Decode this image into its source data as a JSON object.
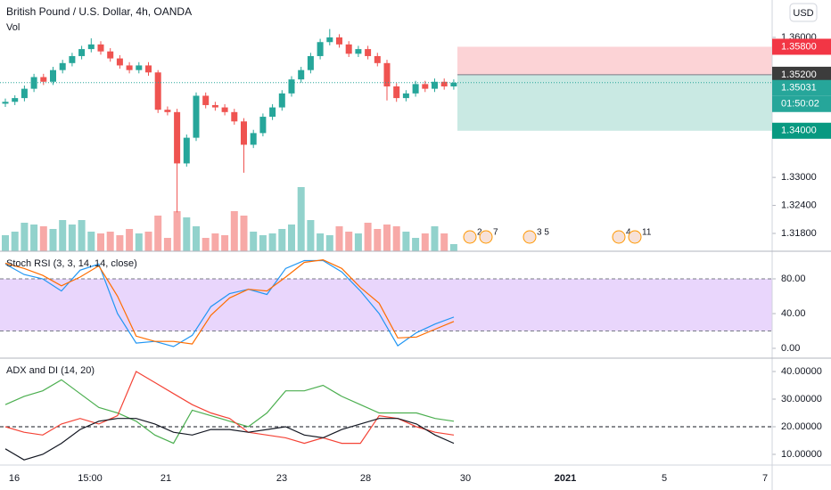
{
  "chart_data": [
    {
      "type": "candlestick",
      "title": "British Pound / U.S. Dollar, 4h, OANDA",
      "volume_label": "Vol",
      "currency": "USD",
      "up_color": "#26a69a",
      "down_color": "#ef5350",
      "open": [
        1.3458,
        1.3462,
        1.347,
        1.349,
        1.3515,
        1.3505,
        1.353,
        1.3545,
        1.356,
        1.3575,
        1.3585,
        1.357,
        1.3555,
        1.354,
        1.353,
        1.354,
        1.3525,
        1.3445,
        1.344,
        1.333,
        1.3385,
        1.3475,
        1.3455,
        1.345,
        1.344,
        1.342,
        1.337,
        1.3395,
        1.343,
        1.345,
        1.348,
        1.351,
        1.353,
        1.356,
        1.359,
        1.36,
        1.3585,
        1.3565,
        1.3575,
        1.356,
        1.3545,
        1.3495,
        1.347,
        1.348,
        1.35,
        1.349,
        1.3505,
        1.3495
      ],
      "high": [
        1.3469,
        1.3476,
        1.3497,
        1.3522,
        1.3522,
        1.3537,
        1.3552,
        1.3567,
        1.3582,
        1.3598,
        1.3592,
        1.3577,
        1.3562,
        1.3547,
        1.3547,
        1.3547,
        1.353,
        1.3452,
        1.3447,
        1.3392,
        1.3482,
        1.3482,
        1.3462,
        1.3457,
        1.3447,
        1.3427,
        1.3402,
        1.3437,
        1.3457,
        1.3487,
        1.3517,
        1.3537,
        1.3567,
        1.3597,
        1.3618,
        1.3607,
        1.3592,
        1.3582,
        1.3582,
        1.3567,
        1.3552,
        1.3502,
        1.3487,
        1.3507,
        1.3507,
        1.3512,
        1.3512,
        1.351
      ],
      "low": [
        1.3451,
        1.3455,
        1.3463,
        1.3483,
        1.3498,
        1.3498,
        1.3523,
        1.3538,
        1.3553,
        1.3568,
        1.3563,
        1.3548,
        1.3533,
        1.3523,
        1.3523,
        1.3518,
        1.3438,
        1.3433,
        1.3225,
        1.3323,
        1.3378,
        1.3448,
        1.3443,
        1.3433,
        1.3413,
        1.331,
        1.3363,
        1.3388,
        1.3423,
        1.3443,
        1.3473,
        1.3503,
        1.3523,
        1.3553,
        1.3583,
        1.3578,
        1.3558,
        1.3558,
        1.3553,
        1.3538,
        1.3465,
        1.3462,
        1.3463,
        1.3473,
        1.3483,
        1.3483,
        1.3488,
        1.3488
      ],
      "close": [
        1.3462,
        1.347,
        1.349,
        1.3515,
        1.3505,
        1.353,
        1.3545,
        1.356,
        1.3575,
        1.3585,
        1.357,
        1.3555,
        1.354,
        1.353,
        1.354,
        1.3525,
        1.3445,
        1.344,
        1.333,
        1.3385,
        1.3475,
        1.3455,
        1.345,
        1.344,
        1.342,
        1.337,
        1.3395,
        1.343,
        1.345,
        1.348,
        1.351,
        1.353,
        1.356,
        1.359,
        1.36,
        1.3585,
        1.3565,
        1.3575,
        1.356,
        1.3545,
        1.3495,
        1.347,
        1.348,
        1.35,
        1.349,
        1.3505,
        1.3495,
        1.3503
      ],
      "volume": [
        18,
        22,
        32,
        30,
        28,
        25,
        35,
        30,
        35,
        22,
        20,
        22,
        18,
        25,
        20,
        22,
        40,
        15,
        45,
        38,
        28,
        15,
        20,
        18,
        45,
        40,
        22,
        18,
        20,
        25,
        30,
        72,
        35,
        20,
        18,
        28,
        22,
        20,
        32,
        25,
        30,
        28,
        22,
        15,
        20,
        28,
        20,
        8
      ],
      "ylim": [
        1.31418,
        1.36802
      ],
      "yticks": [
        {
          "value": 1.36,
          "label": "1.36000"
        },
        {
          "value": 1.33,
          "label": "1.33000"
        },
        {
          "value": 1.324,
          "label": "1.32400"
        },
        {
          "value": 1.318,
          "label": "1.31800"
        }
      ],
      "position": {
        "stop": {
          "value": 1.358,
          "label": "1.35800"
        },
        "entry": {
          "value": 1.352,
          "label": "1.35200"
        },
        "target": {
          "value": 1.34,
          "label": "1.34000"
        }
      },
      "last_price": {
        "value": 1.35031,
        "label": "1.35031"
      },
      "countdown": "01:50:02",
      "x_labels": [
        "16",
        "15:00",
        "21",
        "23",
        "28",
        "30",
        "2021",
        "5",
        "7"
      ],
      "events": [
        "2",
        "7",
        "3 5",
        "4",
        "11"
      ]
    },
    {
      "type": "line",
      "title": "Stoch RSI (3, 3, 14, 14, close)",
      "series": [
        {
          "name": "K",
          "color": "#2196f3",
          "values": [
            97,
            85,
            80,
            66,
            90,
            97,
            40,
            6,
            8,
            2,
            15,
            48,
            63,
            68,
            62,
            92,
            101,
            101,
            88,
            66,
            40,
            3,
            18,
            28,
            36
          ]
        },
        {
          "name": "D",
          "color": "#ff6d00",
          "values": [
            98,
            92,
            84,
            72,
            82,
            95,
            60,
            14,
            8,
            8,
            5,
            38,
            58,
            68,
            66,
            82,
            99,
            102,
            92,
            70,
            52,
            12,
            13,
            22,
            31
          ]
        }
      ],
      "band": [
        20,
        80
      ],
      "band_color": "#e1c8fb",
      "ylim": [
        -11.3,
        111.8
      ],
      "yticks": [
        {
          "value": 80,
          "label": "80.00"
        },
        {
          "value": 40,
          "label": "40.00"
        },
        {
          "value": 0,
          "label": "0.00"
        }
      ]
    },
    {
      "type": "line",
      "title": "ADX and DI (14, 20)",
      "series": [
        {
          "name": "+DI",
          "color": "#4caf50",
          "values": [
            28,
            31,
            33,
            37,
            32,
            27,
            25,
            22,
            17,
            14,
            26,
            24,
            22,
            20,
            25,
            33,
            33,
            35,
            31,
            28,
            25,
            25,
            25,
            23,
            22
          ]
        },
        {
          "name": "-DI",
          "color": "#f44336",
          "values": [
            20,
            18,
            17,
            21,
            23,
            21,
            24,
            40,
            36,
            32,
            28,
            25,
            23,
            18,
            17,
            16,
            14,
            16,
            14,
            14,
            24,
            23,
            20,
            18,
            17
          ]
        },
        {
          "name": "ADX",
          "color": "#131722",
          "values": [
            12,
            8,
            10,
            14,
            19,
            22,
            23,
            23,
            21,
            18,
            17,
            19,
            19,
            18,
            19,
            20,
            17,
            16,
            19,
            21,
            23,
            23,
            21,
            17,
            14
          ]
        }
      ],
      "hline": 20,
      "ylim": [
        6.13,
        44.84
      ],
      "yticks": [
        {
          "value": 40,
          "label": "40.00000"
        },
        {
          "value": 30,
          "label": "30.00000"
        },
        {
          "value": 20,
          "label": "20.00000"
        },
        {
          "value": 10,
          "label": "10.00000"
        }
      ]
    }
  ]
}
